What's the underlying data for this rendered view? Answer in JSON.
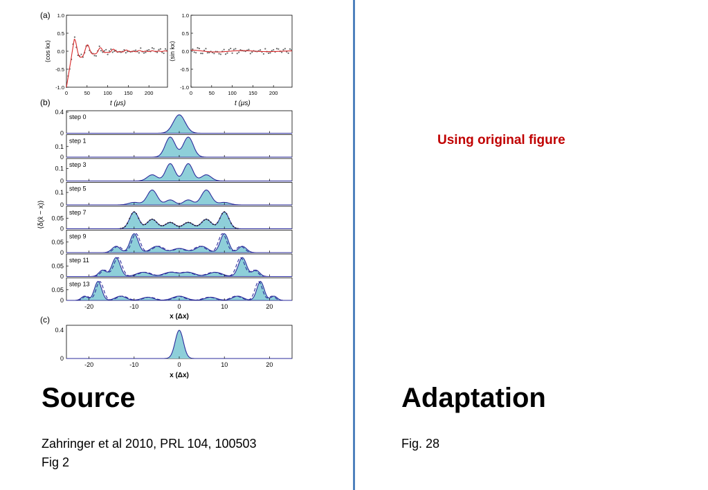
{
  "left": {
    "heading": "Source",
    "citation_line1": "Zahringer et al 2010, PRL 104, 100503",
    "citation_line2": "Fig 2"
  },
  "right": {
    "heading": "Adaptation",
    "figure_ref": "Fig. 28",
    "note": "Using original figure"
  },
  "colors": {
    "divider": "#4f81bd",
    "note": "#c00000",
    "fill": "#8ecfd9",
    "curve": "#2b2b9b",
    "data_red": "#d62728"
  },
  "chart_data": [
    {
      "panel": "(a)",
      "type": "line",
      "ylabel": "⟨cos kx⟩",
      "xlabel": "t (μs)",
      "xticks": [
        0,
        50,
        100,
        150,
        200
      ],
      "yticks": [
        "1.0",
        "0.5",
        "0.0",
        "-0.5",
        "-1.0"
      ],
      "xlim": [
        0,
        245
      ],
      "ylim": [
        -1,
        1
      ],
      "series": [
        {
          "x": [
            0,
            5,
            10,
            15,
            20,
            25,
            30,
            40,
            50,
            60,
            70,
            80,
            90,
            100,
            110,
            120,
            130,
            140,
            150,
            170,
            190,
            210,
            240
          ],
          "y": [
            -1.0,
            -0.6,
            -0.1,
            0.3,
            0.45,
            0.35,
            0.1,
            -0.15,
            0.2,
            0.15,
            -0.1,
            0.1,
            -0.05,
            0.18,
            0.05,
            -0.05,
            0.0,
            0.03,
            0.0,
            0.02,
            -0.01,
            0.0,
            0.0
          ]
        }
      ]
    },
    {
      "panel": "(a)",
      "type": "line",
      "ylabel": "⟨sin kx⟩",
      "xlabel": "t (μs)",
      "xticks": [
        0,
        50,
        100,
        150,
        200
      ],
      "yticks": [
        "1.0",
        "0.5",
        "0.0",
        "-0.5",
        "-1.0"
      ],
      "xlim": [
        0,
        245
      ],
      "ylim": [
        -1,
        1
      ],
      "series": [
        {
          "x": [
            0,
            40,
            80,
            120,
            160,
            200,
            240
          ],
          "y": [
            0.05,
            0.02,
            0.0,
            -0.02,
            0.0,
            0.01,
            0.0
          ]
        }
      ]
    },
    {
      "panel": "(b)",
      "type": "area",
      "ylabel": "⟨δ(x̂ − x)⟩",
      "xlabel": "x (Δx)",
      "xticks": [
        -20,
        -10,
        0,
        10,
        20
      ],
      "xlim": [
        -25,
        25
      ],
      "steps": [
        {
          "label": "step 0",
          "yticks": [
            "0.4",
            "0"
          ],
          "ymax": 0.4,
          "peaks": [
            [
              0,
              0.35,
              1.3
            ]
          ]
        },
        {
          "label": "step 1",
          "yticks": [
            "0.1",
            "0"
          ],
          "ymax": 0.2,
          "peaks": [
            [
              -2,
              0.19,
              1.1
            ],
            [
              2,
              0.19,
              1.1
            ]
          ]
        },
        {
          "label": "step 3",
          "yticks": [
            "0.1",
            "0"
          ],
          "ymax": 0.17,
          "peaks": [
            [
              -6,
              0.05,
              1.1
            ],
            [
              -2,
              0.14,
              1.0
            ],
            [
              2,
              0.14,
              1.0
            ],
            [
              6,
              0.05,
              1.1
            ]
          ]
        },
        {
          "label": "step 5",
          "yticks": [
            "0.1",
            "0"
          ],
          "ymax": 0.17,
          "peaks": [
            [
              -10,
              0.02,
              1.2
            ],
            [
              -6,
              0.12,
              1.1
            ],
            [
              -2,
              0.04,
              1.0
            ],
            [
              2,
              0.04,
              1.0
            ],
            [
              6,
              0.12,
              1.1
            ],
            [
              10,
              0.02,
              1.2
            ]
          ]
        },
        {
          "label": "step 7",
          "yticks": [
            "0.05",
            "0"
          ],
          "ymax": 0.1,
          "peaks": [
            [
              -10,
              0.08,
              1.0
            ],
            [
              -6,
              0.045,
              1.1
            ],
            [
              -2,
              0.03,
              1.1
            ],
            [
              2,
              0.03,
              1.1
            ],
            [
              6,
              0.045,
              1.1
            ],
            [
              10,
              0.08,
              1.0
            ]
          ]
        },
        {
          "label": "step 9",
          "yticks": [
            "0.05",
            "0"
          ],
          "ymax": 0.1,
          "peaks": [
            [
              -14,
              0.03,
              0.9
            ],
            [
              -10,
              0.09,
              0.9
            ],
            [
              -5,
              0.03,
              1.3
            ],
            [
              0,
              0.02,
              1.5
            ],
            [
              5,
              0.03,
              1.3
            ],
            [
              10,
              0.09,
              0.9
            ],
            [
              14,
              0.03,
              0.9
            ]
          ]
        },
        {
          "label": "step 11",
          "yticks": [
            "0.05",
            "0"
          ],
          "ymax": 0.1,
          "peaks": [
            [
              -17,
              0.03,
              0.8
            ],
            [
              -14,
              0.09,
              0.9
            ],
            [
              -8,
              0.02,
              1.5
            ],
            [
              -2,
              0.02,
              1.5
            ],
            [
              2,
              0.02,
              1.5
            ],
            [
              8,
              0.02,
              1.5
            ],
            [
              14,
              0.09,
              0.9
            ],
            [
              17,
              0.03,
              0.8
            ]
          ]
        },
        {
          "label": "step 13",
          "yticks": [
            "0.05",
            "0"
          ],
          "ymax": 0.1,
          "peaks": [
            [
              -21,
              0.02,
              0.7
            ],
            [
              -18,
              0.09,
              0.8
            ],
            [
              -13,
              0.02,
              1.2
            ],
            [
              -7,
              0.015,
              1.3
            ],
            [
              0,
              0.02,
              1.5
            ],
            [
              7,
              0.015,
              1.3
            ],
            [
              13,
              0.02,
              1.2
            ],
            [
              18,
              0.09,
              0.8
            ],
            [
              21,
              0.02,
              0.7
            ]
          ]
        }
      ]
    },
    {
      "panel": "(c)",
      "type": "area",
      "xlabel": "x (Δx)",
      "xticks": [
        -20,
        -10,
        0,
        10,
        20
      ],
      "yticks": [
        "0.4",
        "0"
      ],
      "xlim": [
        -25,
        25
      ],
      "ymax": 0.43,
      "peaks": [
        [
          0,
          0.4,
          0.9
        ]
      ]
    }
  ]
}
